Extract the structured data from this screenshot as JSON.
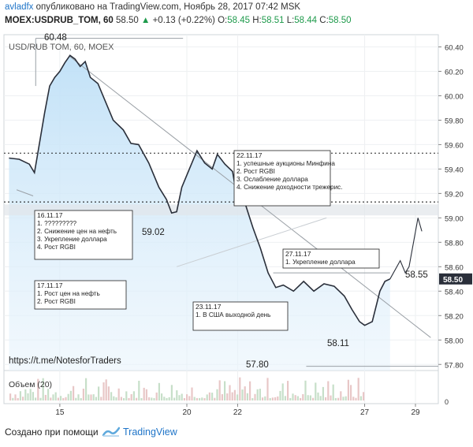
{
  "header": {
    "user": "avladfx",
    "published": "опубликовано на TradingView.com, Ноябрь 28, 2017 07:42 MSK",
    "symbol": "MOEX:USDRUB_TOM, 60",
    "last": "58.50",
    "change_arrow": "▲",
    "change": "+0.13 (+0.22%)",
    "o_label": "O:",
    "o": "58.45",
    "h_label": "H:",
    "h": "58.51",
    "l_label": "L:",
    "l": "58.44",
    "c_label": "C:",
    "c": "58.50"
  },
  "chart_data": {
    "type": "line",
    "title": "USD/RUB TOM, 60, MOEX",
    "y_axis": {
      "min": 57.75,
      "max": 60.5,
      "ticks": [
        "60.40",
        "60.20",
        "60.00",
        "59.80",
        "59.60",
        "59.40",
        "59.20",
        "59.00",
        "58.80",
        "58.60",
        "58.40",
        "58.20",
        "58.00",
        "57.80"
      ]
    },
    "x_axis": {
      "min": 12.8,
      "max": 29.9,
      "ticks": [
        {
          "pos": 15,
          "label": "15"
        },
        {
          "pos": 20,
          "label": "20"
        },
        {
          "pos": 22,
          "label": "22"
        },
        {
          "pos": 27,
          "label": "27"
        },
        {
          "pos": 29,
          "label": "29"
        }
      ]
    },
    "series": [
      {
        "values": [
          [
            13.0,
            59.49
          ],
          [
            13.4,
            59.48
          ],
          [
            13.8,
            59.44
          ],
          [
            14.0,
            59.37
          ],
          [
            14.1,
            59.49
          ],
          [
            14.4,
            59.86
          ],
          [
            14.6,
            60.08
          ],
          [
            14.8,
            60.15
          ],
          [
            15.0,
            60.2
          ],
          [
            15.2,
            60.27
          ],
          [
            15.4,
            60.33
          ],
          [
            15.6,
            60.3
          ],
          [
            15.8,
            60.24
          ],
          [
            16.0,
            60.28
          ],
          [
            16.2,
            60.15
          ],
          [
            16.5,
            60.1
          ],
          [
            16.8,
            59.95
          ],
          [
            17.1,
            59.8
          ],
          [
            17.5,
            59.72
          ],
          [
            17.8,
            59.61
          ],
          [
            18.1,
            59.6
          ],
          [
            18.5,
            59.45
          ],
          [
            18.9,
            59.25
          ],
          [
            19.2,
            59.15
          ],
          [
            19.4,
            59.04
          ],
          [
            19.6,
            59.05
          ],
          [
            19.8,
            59.25
          ],
          [
            20.1,
            59.4
          ],
          [
            20.4,
            59.55
          ],
          [
            20.7,
            59.45
          ],
          [
            21.0,
            59.4
          ],
          [
            21.2,
            59.52
          ],
          [
            21.5,
            59.44
          ],
          [
            21.8,
            59.38
          ],
          [
            21.95,
            59.2
          ],
          [
            22.2,
            59.18
          ],
          [
            22.4,
            59.05
          ],
          [
            22.6,
            58.92
          ],
          [
            22.9,
            58.75
          ],
          [
            23.2,
            58.55
          ],
          [
            23.5,
            58.43
          ],
          [
            23.8,
            58.45
          ],
          [
            24.2,
            58.4
          ],
          [
            24.6,
            58.48
          ],
          [
            25.0,
            58.4
          ],
          [
            25.4,
            58.46
          ],
          [
            25.8,
            58.44
          ],
          [
            26.2,
            58.36
          ],
          [
            26.5,
            58.25
          ],
          [
            26.8,
            58.15
          ],
          [
            27.0,
            58.12
          ],
          [
            27.3,
            58.15
          ],
          [
            27.6,
            58.4
          ],
          [
            27.8,
            58.48
          ],
          [
            28.0,
            58.5
          ]
        ],
        "color": "#2a2f3a"
      },
      {
        "values": [
          [
            28.0,
            58.5
          ],
          [
            28.4,
            58.65
          ],
          [
            28.6,
            58.55
          ],
          [
            28.75,
            58.6
          ],
          [
            29.1,
            59.0
          ],
          [
            29.25,
            58.89
          ]
        ],
        "color": "#2a2f3a"
      }
    ],
    "levels": [
      {
        "value": 59.53,
        "label": "",
        "style": "dotted"
      },
      {
        "value": 59.13,
        "label": "",
        "style": "dotted"
      }
    ],
    "annotations": [
      {
        "date": "22.11.17",
        "lines": [
          "1. успешные аукционы Минфина",
          "2. Рост RGBI",
          "3. Ослабление доллара",
          "4. Снижение доходности трежерис."
        ]
      },
      {
        "date": "16.11.17",
        "lines": [
          "1. ?????????",
          "2. Снижение цен на нефть",
          "3. Укрепление доллара",
          "4. Рост RGBI"
        ]
      },
      {
        "date": "17.11.17",
        "lines": [
          "1. Рост цен на нефть",
          "2. Рост RGBI"
        ]
      },
      {
        "date": "27.11.17",
        "lines": [
          "1. Укрепление доллара"
        ]
      },
      {
        "date": "23.11.17",
        "lines": [
          "1. В США выходной день"
        ]
      }
    ],
    "price_labels": [
      "60.48",
      "59.02",
      "58.55",
      "58.11",
      "57.80"
    ],
    "last_price": "58.50",
    "watermark_link": "https://t.me/NotesforTraders",
    "volume_label": "Объем (20)",
    "volume_axis_label": "0"
  },
  "footer": {
    "created_with": "Создано при помощи",
    "brand": "TradingView"
  }
}
